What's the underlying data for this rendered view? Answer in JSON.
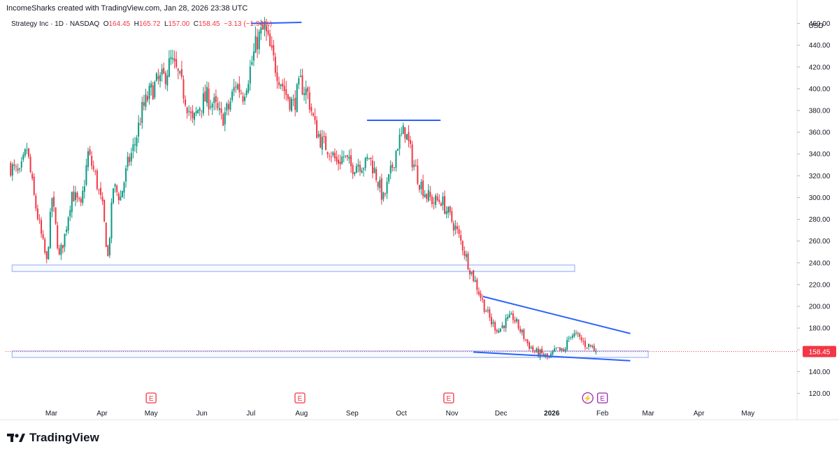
{
  "header": {
    "credit": "IncomeSharks created with TradingView.com, Jan 28, 2026 23:38 UTC"
  },
  "legend": {
    "symbol": "Strategy Inc · 1D · NASDAQ",
    "o_label": "O",
    "o_value": "164.45",
    "h_label": "H",
    "h_value": "165.72",
    "l_label": "L",
    "l_value": "157.00",
    "c_label": "C",
    "c_value": "158.45",
    "change": "−3.13 (−1.94%)"
  },
  "footer": {
    "brand": "TradingView"
  },
  "colors": {
    "up": "#089981",
    "down": "#f23645",
    "line": "#2962ff",
    "zone": "#b2c5f8",
    "price": "#f23645",
    "earnings": "#f23645",
    "dividend": "#9c27b0"
  },
  "chart_data": {
    "type": "candlestick",
    "title": "Strategy Inc · 1D · NASDAQ",
    "currency": "USD",
    "ylim": [
      110,
      470
    ],
    "y_ticks": [
      "120.00",
      "140.00",
      "160.00",
      "180.00",
      "200.00",
      "220.00",
      "240.00",
      "260.00",
      "280.00",
      "300.00",
      "320.00",
      "340.00",
      "360.00",
      "380.00",
      "400.00",
      "420.00",
      "440.00",
      "460.00"
    ],
    "x_ticks": [
      "Mar",
      "Apr",
      "May",
      "Jun",
      "Jul",
      "Aug",
      "Sep",
      "Oct",
      "Nov",
      "Dec",
      "2026",
      "Feb",
      "Mar",
      "Apr",
      "May"
    ],
    "x_tick_bold": "2026",
    "last_price": "158.45",
    "last_price_value": 158.45,
    "price_path": [
      [
        0,
        330
      ],
      [
        6,
        320
      ],
      [
        10,
        345
      ],
      [
        14,
        300
      ],
      [
        18,
        265
      ],
      [
        21,
        240
      ],
      [
        24,
        300
      ],
      [
        28,
        245
      ],
      [
        31,
        265
      ],
      [
        35,
        305
      ],
      [
        40,
        290
      ],
      [
        44,
        340
      ],
      [
        48,
        320
      ],
      [
        52,
        290
      ],
      [
        55,
        245
      ],
      [
        58,
        310
      ],
      [
        62,
        300
      ],
      [
        66,
        330
      ],
      [
        70,
        350
      ],
      [
        74,
        380
      ],
      [
        78,
        395
      ],
      [
        82,
        405
      ],
      [
        86,
        410
      ],
      [
        90,
        425
      ],
      [
        94,
        412
      ],
      [
        98,
        392
      ],
      [
        102,
        368
      ],
      [
        106,
        385
      ],
      [
        110,
        392
      ],
      [
        114,
        385
      ],
      [
        118,
        372
      ],
      [
        122,
        382
      ],
      [
        126,
        405
      ],
      [
        130,
        395
      ],
      [
        134,
        418
      ],
      [
        138,
        445
      ],
      [
        142,
        455
      ],
      [
        146,
        430
      ],
      [
        150,
        412
      ],
      [
        154,
        395
      ],
      [
        158,
        385
      ],
      [
        162,
        405
      ],
      [
        166,
        395
      ],
      [
        170,
        365
      ],
      [
        174,
        350
      ],
      [
        178,
        345
      ],
      [
        182,
        332
      ],
      [
        186,
        338
      ],
      [
        190,
        328
      ],
      [
        194,
        332
      ],
      [
        198,
        330
      ],
      [
        200,
        338
      ],
      [
        204,
        320
      ],
      [
        208,
        298
      ],
      [
        212,
        322
      ],
      [
        216,
        350
      ],
      [
        220,
        362
      ],
      [
        224,
        335
      ],
      [
        228,
        315
      ],
      [
        232,
        302
      ],
      [
        236,
        296
      ],
      [
        240,
        298
      ],
      [
        244,
        285
      ],
      [
        248,
        272
      ],
      [
        252,
        255
      ],
      [
        256,
        235
      ],
      [
        260,
        218
      ],
      [
        264,
        200
      ],
      [
        268,
        185
      ],
      [
        272,
        178
      ],
      [
        276,
        186
      ],
      [
        280,
        190
      ],
      [
        284,
        178
      ],
      [
        288,
        166
      ],
      [
        292,
        158
      ],
      [
        296,
        156
      ],
      [
        300,
        152
      ],
      [
        304,
        160
      ],
      [
        308,
        158
      ],
      [
        312,
        175
      ],
      [
        316,
        172
      ],
      [
        320,
        165
      ],
      [
        324,
        163
      ],
      [
        326,
        158.45
      ]
    ],
    "annotations": {
      "trendlines": [
        {
          "from": [
            "2025-07-01",
            460
          ],
          "to": [
            "2025-08-01",
            461
          ]
        },
        {
          "from": [
            "2025-09-10",
            371
          ],
          "to": [
            "2025-10-25",
            371
          ]
        },
        {
          "from": [
            "2025-11-20",
            209
          ],
          "to": [
            "2026-02-18",
            175
          ]
        },
        {
          "from": [
            "2025-11-14",
            158
          ],
          "to": [
            "2026-02-18",
            150
          ]
        }
      ],
      "zones": [
        {
          "from": "2025-02-05",
          "to": "2026-01-15",
          "low": 232,
          "high": 238
        },
        {
          "from": "2025-02-05",
          "to": "2026-03-01",
          "low": 153,
          "high": 159
        }
      ],
      "events": [
        {
          "type": "earnings",
          "label": "E",
          "near": "May"
        },
        {
          "type": "earnings",
          "label": "E",
          "near": "Aug"
        },
        {
          "type": "earnings",
          "label": "E",
          "near": "Nov"
        },
        {
          "type": "dividend",
          "label": "⚡",
          "near": "Feb"
        },
        {
          "type": "earnings",
          "label": "E",
          "near": "Feb"
        }
      ]
    }
  }
}
